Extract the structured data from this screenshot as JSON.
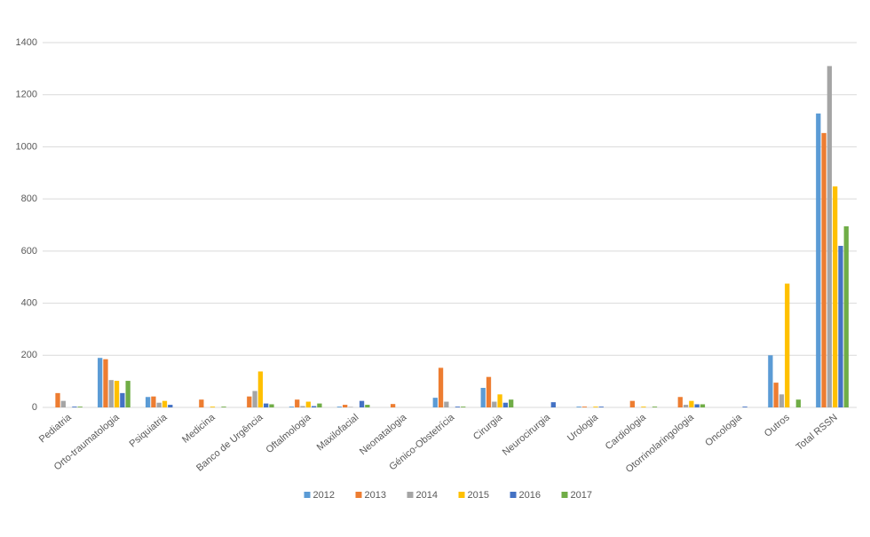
{
  "chart_data": {
    "type": "bar",
    "categories": [
      "Pediatria",
      "Orto-traumatologia",
      "Psiquiatria",
      "Medicina",
      "Banco de Urgência",
      "Oftalmologia",
      "Maxilofacial",
      "Neonatalogia",
      "Génico-Obstetrícia",
      "Cirurgia",
      "Neurocirurgia",
      "Urologia",
      "Cardiologia",
      "Otorrinolaringologia",
      "Oncologia",
      "Outros",
      "Total RSSN"
    ],
    "series": [
      {
        "name": "2012",
        "color": "#5b9bd5",
        "values": [
          0,
          190,
          40,
          0,
          0,
          3,
          3,
          0,
          37,
          75,
          0,
          3,
          0,
          0,
          0,
          200,
          1128
        ]
      },
      {
        "name": "2013",
        "color": "#ed7d31",
        "values": [
          55,
          185,
          42,
          30,
          42,
          30,
          10,
          13,
          152,
          117,
          0,
          3,
          25,
          40,
          0,
          95,
          1053
        ]
      },
      {
        "name": "2014",
        "color": "#a5a5a5",
        "values": [
          25,
          105,
          18,
          0,
          63,
          5,
          2,
          0,
          22,
          22,
          0,
          0,
          0,
          10,
          0,
          50,
          1310
        ]
      },
      {
        "name": "2015",
        "color": "#ffc000",
        "values": [
          0,
          102,
          25,
          3,
          138,
          22,
          0,
          0,
          0,
          50,
          0,
          3,
          3,
          25,
          0,
          475,
          848
        ]
      },
      {
        "name": "2016",
        "color": "#4472c4",
        "values": [
          3,
          55,
          10,
          0,
          15,
          5,
          25,
          0,
          3,
          18,
          20,
          3,
          0,
          12,
          3,
          0,
          620
        ]
      },
      {
        "name": "2017",
        "color": "#70ad47",
        "values": [
          3,
          102,
          0,
          3,
          12,
          15,
          10,
          0,
          3,
          30,
          0,
          0,
          3,
          12,
          0,
          30,
          695
        ]
      }
    ],
    "ylim": [
      0,
      1400
    ],
    "yticks": [
      0,
      200,
      400,
      600,
      800,
      1000,
      1200,
      1400
    ],
    "grid": true,
    "legend": "bottom"
  }
}
